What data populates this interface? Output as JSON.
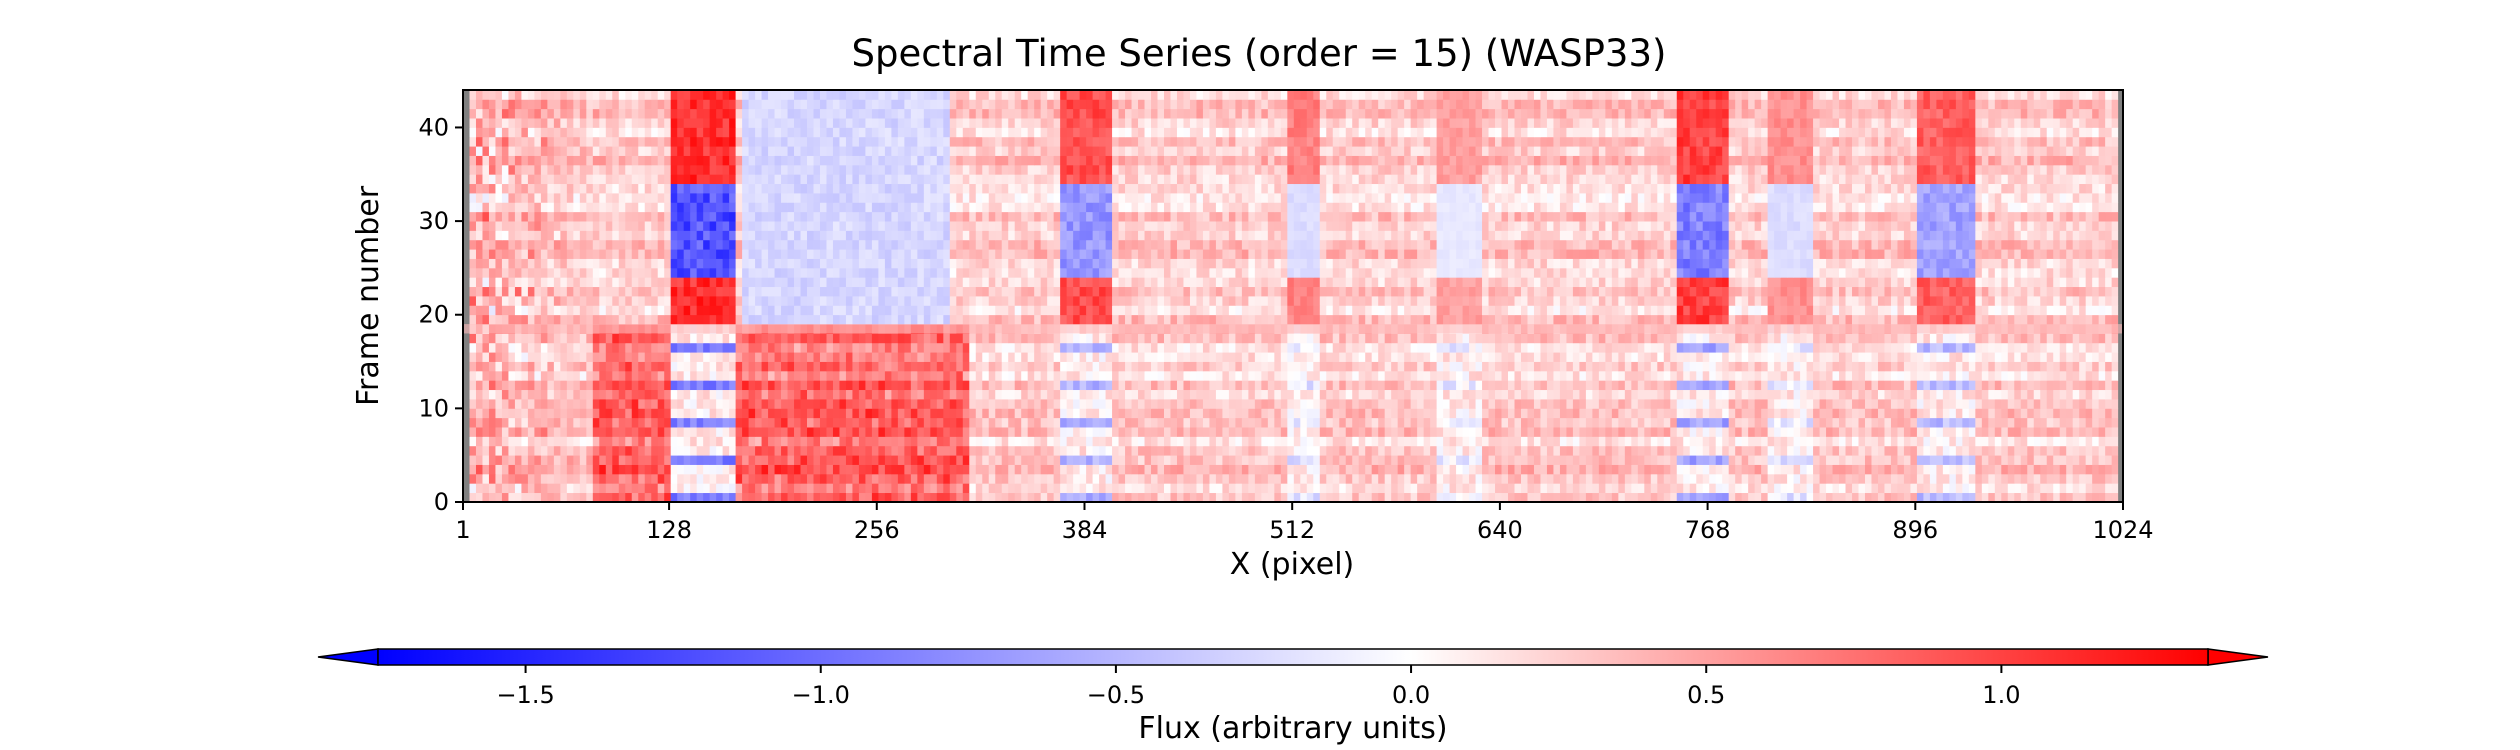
{
  "chart_data": {
    "type": "heatmap",
    "title": "Spectral Time Series (order = 15) (WASP33)",
    "xlabel": "X (pixel)",
    "ylabel": "Frame number",
    "xlim": [
      1,
      1024
    ],
    "ylim": [
      0,
      44
    ],
    "x_ticks": [
      1,
      128,
      256,
      384,
      512,
      640,
      768,
      896,
      1024
    ],
    "y_ticks": [
      0,
      10,
      20,
      30,
      40
    ],
    "grid": false,
    "colormap": "bwr",
    "colormap_colors": [
      "#0000ff",
      "#ffffff",
      "#ff0000"
    ],
    "colorbar": {
      "label": "Flux (arbitrary units)",
      "orientation": "horizontal",
      "position": "bottom",
      "range": [
        -1.75,
        1.35
      ],
      "ticks": [
        -1.5,
        -1.0,
        -0.5,
        0.0,
        0.5,
        1.0
      ],
      "tick_labels": [
        "−1.5",
        "−1.0",
        "−0.5",
        "0.0",
        "0.5",
        "1.0"
      ],
      "extend": "both"
    },
    "masked_color": "#808080",
    "masked_x_ranges": [
      [
        1,
        4
      ],
      [
        1021,
        1024
      ]
    ],
    "background_level": 0.25,
    "absorption_features": [
      {
        "x_range": [
          128,
          165
        ],
        "in_transit_level": 1.3,
        "mid_level": -1.5
      },
      {
        "x_range": [
          368,
          398
        ],
        "in_transit_level": 1.1,
        "mid_level": -0.9
      },
      {
        "x_range": [
          508,
          527
        ],
        "in_transit_level": 0.8,
        "mid_level": -0.3
      },
      {
        "x_range": [
          600,
          625
        ],
        "in_transit_level": 0.6,
        "mid_level": -0.2
      },
      {
        "x_range": [
          747,
          778
        ],
        "in_transit_level": 1.2,
        "mid_level": -1.1
      },
      {
        "x_range": [
          802,
          830
        ],
        "in_transit_level": 0.7,
        "mid_level": -0.3
      },
      {
        "x_range": [
          895,
          932
        ],
        "in_transit_level": 1.0,
        "mid_level": -0.8
      }
    ],
    "broad_blue_band": {
      "x_range": [
        170,
        300
      ],
      "frames": [
        19,
        44
      ],
      "level": -0.4
    },
    "broad_red_band": {
      "x_range": [
        80,
        310
      ],
      "frames": [
        0,
        18
      ],
      "level": 0.7
    },
    "bright_frames": [
      {
        "frame": 18.5,
        "level": -1.6
      }
    ],
    "notes_on_frames": {
      "pre_transit": [
        0,
        18
      ],
      "in_transit": [
        19,
        44
      ]
    }
  }
}
